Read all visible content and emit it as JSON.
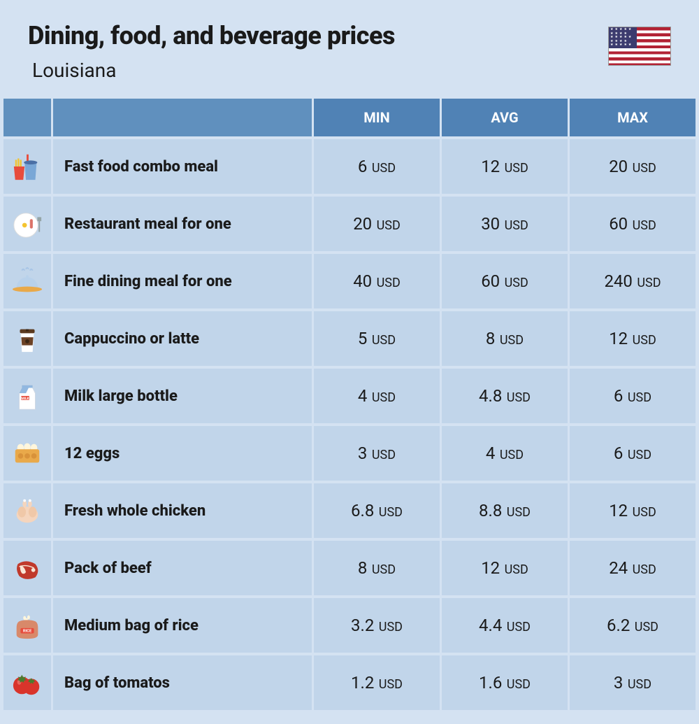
{
  "header": {
    "title": "Dining, food, and beverage prices",
    "subtitle": "Louisiana"
  },
  "columns": [
    "MIN",
    "AVG",
    "MAX"
  ],
  "currency": "USD",
  "rows": [
    {
      "icon": "fast-food",
      "label": "Fast food combo meal",
      "min": "6",
      "avg": "12",
      "max": "20"
    },
    {
      "icon": "restaurant",
      "label": "Restaurant meal for one",
      "min": "20",
      "avg": "30",
      "max": "60"
    },
    {
      "icon": "cloche",
      "label": "Fine dining meal for one",
      "min": "40",
      "avg": "60",
      "max": "240"
    },
    {
      "icon": "coffee",
      "label": "Cappuccino or latte",
      "min": "5",
      "avg": "8",
      "max": "12"
    },
    {
      "icon": "milk",
      "label": "Milk large bottle",
      "min": "4",
      "avg": "4.8",
      "max": "6"
    },
    {
      "icon": "eggs",
      "label": "12 eggs",
      "min": "3",
      "avg": "4",
      "max": "6"
    },
    {
      "icon": "chicken",
      "label": "Fresh whole chicken",
      "min": "6.8",
      "avg": "8.8",
      "max": "12"
    },
    {
      "icon": "beef",
      "label": "Pack of beef",
      "min": "8",
      "avg": "12",
      "max": "24"
    },
    {
      "icon": "rice",
      "label": "Medium bag of rice",
      "min": "3.2",
      "avg": "4.4",
      "max": "6.2"
    },
    {
      "icon": "tomatoes",
      "label": "Bag of tomatos",
      "min": "1.2",
      "avg": "1.6",
      "max": "3"
    }
  ],
  "colors": {
    "page_bg": "#d4e2f2",
    "header_cell_bg": "#6090be",
    "header_col_bg": "#5082b5",
    "cell_bg": "#c1d5ea",
    "text": "#1a1a1a",
    "header_text": "#ffffff"
  },
  "icon_colors": {
    "fast-food": {
      "fries_box": "#e74c3c",
      "fries": "#f4c430",
      "cup": "#7aa7d6",
      "lid": "#4a6fa5",
      "straw": "#e74c3c"
    },
    "restaurant": {
      "plate": "#ffffff",
      "egg_white": "#fff",
      "egg_yolk": "#f4c430",
      "bacon": "#d35447",
      "fork": "#95a5a6"
    },
    "cloche": {
      "dome": "#b8d1eb",
      "base": "#e9a94a",
      "steam": "#a8c5e6"
    },
    "coffee": {
      "cup": "#ffffff",
      "sleeve": "#6b4226",
      "lid": "#5a3a1f",
      "hole": "#3a2614"
    },
    "milk": {
      "carton": "#ffffff",
      "top": "#92b8e0",
      "label": "#e74c3c"
    },
    "eggs": {
      "carton": "#e9a94a",
      "egg": "#fff6dc"
    },
    "chicken": {
      "body": "#f5d5bd",
      "wing": "#f0c8a8"
    },
    "beef": {
      "meat": "#c0392b",
      "fat": "#f8e5d5",
      "bone": "#f8e5d5"
    },
    "rice": {
      "bag": "#d8896a",
      "label": "#e74c3c",
      "rice": "#fff6dc"
    },
    "tomatoes": {
      "body": "#d9342b",
      "stem": "#4a7c2e",
      "shine": "#f07a72"
    }
  }
}
